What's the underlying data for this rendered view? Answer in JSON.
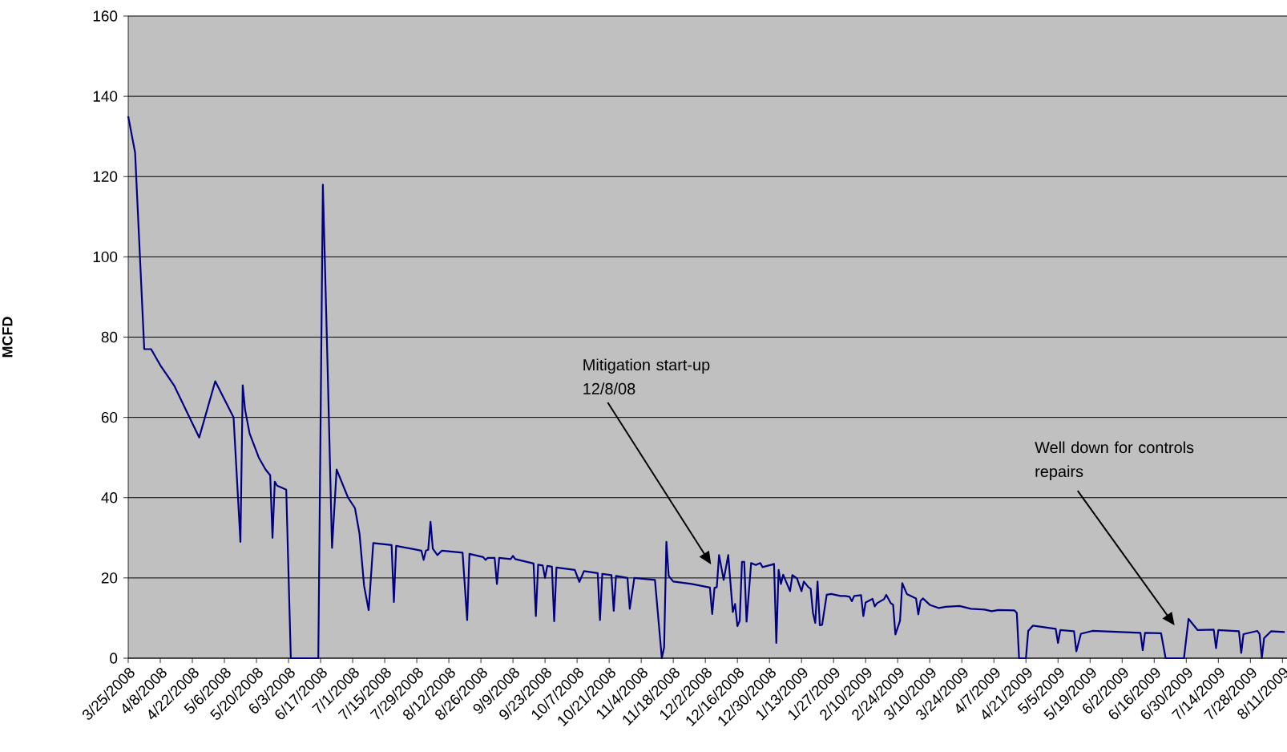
{
  "chart_data": {
    "type": "line",
    "ylabel": "MCFD",
    "color": "#000080",
    "grid": "y",
    "xlim": [
      "2008-03-25",
      "2009-08-13"
    ],
    "ylim": [
      0,
      160
    ],
    "yticks": [
      0,
      20,
      40,
      60,
      80,
      100,
      120,
      140,
      160
    ],
    "xticks": [
      {
        "value": "2008-03-25",
        "label": "3/25/2008"
      },
      {
        "value": "2008-04-08",
        "label": "4/8/2008"
      },
      {
        "value": "2008-04-22",
        "label": "4/22/2008"
      },
      {
        "value": "2008-05-06",
        "label": "5/6/2008"
      },
      {
        "value": "2008-05-20",
        "label": "5/20/2008"
      },
      {
        "value": "2008-06-03",
        "label": "6/3/2008"
      },
      {
        "value": "2008-06-17",
        "label": "6/17/2008"
      },
      {
        "value": "2008-07-01",
        "label": "7/1/2008"
      },
      {
        "value": "2008-07-15",
        "label": "7/15/2008"
      },
      {
        "value": "2008-07-29",
        "label": "7/29/2008"
      },
      {
        "value": "2008-08-12",
        "label": "8/12/2008"
      },
      {
        "value": "2008-08-26",
        "label": "8/26/2008"
      },
      {
        "value": "2008-09-09",
        "label": "9/9/2008"
      },
      {
        "value": "2008-09-23",
        "label": "9/23/2008"
      },
      {
        "value": "2008-10-07",
        "label": "10/7/2008"
      },
      {
        "value": "2008-10-21",
        "label": "10/21/2008"
      },
      {
        "value": "2008-11-04",
        "label": "11/4/2008"
      },
      {
        "value": "2008-11-18",
        "label": "11/18/2008"
      },
      {
        "value": "2008-12-02",
        "label": "12/2/2008"
      },
      {
        "value": "2008-12-16",
        "label": "12/16/2008"
      },
      {
        "value": "2008-12-30",
        "label": "12/30/2008"
      },
      {
        "value": "2009-01-13",
        "label": "1/13/2009"
      },
      {
        "value": "2009-01-27",
        "label": "1/27/2009"
      },
      {
        "value": "2009-02-10",
        "label": "2/10/2009"
      },
      {
        "value": "2009-02-24",
        "label": "2/24/2009"
      },
      {
        "value": "2009-03-10",
        "label": "3/10/2009"
      },
      {
        "value": "2009-03-24",
        "label": "3/24/2009"
      },
      {
        "value": "2009-04-07",
        "label": "4/7/2009"
      },
      {
        "value": "2009-04-21",
        "label": "4/21/2009"
      },
      {
        "value": "2009-05-05",
        "label": "5/5/2009"
      },
      {
        "value": "2009-05-19",
        "label": "5/19/2009"
      },
      {
        "value": "2009-06-02",
        "label": "6/2/2009"
      },
      {
        "value": "2009-06-16",
        "label": "6/16/2009"
      },
      {
        "value": "2009-06-30",
        "label": "6/30/2009"
      },
      {
        "value": "2009-07-14",
        "label": "7/14/2009"
      },
      {
        "value": "2009-07-28",
        "label": "7/28/2009"
      },
      {
        "value": "2009-08-11",
        "label": "8/11/2009"
      }
    ],
    "annotations": [
      "Mitigation start-up 12/8/08",
      "Well down for controls repairs"
    ],
    "x": [
      "2008-03-25",
      "2008-03-28",
      "2008-04-01",
      "2008-04-04",
      "2008-04-08",
      "2008-04-14",
      "2008-04-25",
      "2008-05-02",
      "2008-05-10",
      "2008-05-13",
      "2008-05-14",
      "2008-05-15",
      "2008-05-17",
      "2008-05-21",
      "2008-05-24",
      "2008-05-26",
      "2008-05-27",
      "2008-05-28",
      "2008-05-29",
      "2008-06-02",
      "2008-06-04",
      "2008-06-16",
      "2008-06-18",
      "2008-06-20",
      "2008-06-22",
      "2008-06-24",
      "2008-06-29",
      "2008-07-02",
      "2008-07-04",
      "2008-07-06",
      "2008-07-08",
      "2008-07-10",
      "2008-07-18",
      "2008-07-19",
      "2008-07-20",
      "2008-07-31",
      "2008-08-01",
      "2008-08-02",
      "2008-08-03",
      "2008-08-04",
      "2008-08-05",
      "2008-08-07",
      "2008-08-09",
      "2008-08-18",
      "2008-08-20",
      "2008-08-21",
      "2008-08-27",
      "2008-08-28",
      "2008-08-29",
      "2008-09-01",
      "2008-09-02",
      "2008-09-03",
      "2008-09-08",
      "2008-09-09",
      "2008-09-10",
      "2008-09-18",
      "2008-09-19",
      "2008-09-20",
      "2008-09-22",
      "2008-09-23",
      "2008-09-24",
      "2008-09-26",
      "2008-09-27",
      "2008-09-28",
      "2008-10-06",
      "2008-10-08",
      "2008-10-10",
      "2008-10-16",
      "2008-10-17",
      "2008-10-18",
      "2008-10-22",
      "2008-10-23",
      "2008-10-24",
      "2008-10-29",
      "2008-10-30",
      "2008-11-01",
      "2008-11-10",
      "2008-11-13",
      "2008-11-14",
      "2008-11-15",
      "2008-11-16",
      "2008-11-18",
      "2008-11-26",
      "2008-12-04",
      "2008-12-05",
      "2008-12-06",
      "2008-12-07",
      "2008-12-08",
      "2008-12-10",
      "2008-12-12",
      "2008-12-14",
      "2008-12-15",
      "2008-12-16",
      "2008-12-17",
      "2008-12-18",
      "2008-12-19",
      "2008-12-20",
      "2008-12-22",
      "2008-12-24",
      "2008-12-26",
      "2008-12-27",
      "2008-12-31",
      "2009-01-01",
      "2009-01-02",
      "2009-01-03",
      "2009-01-04",
      "2009-01-05",
      "2009-01-08",
      "2009-01-09",
      "2009-01-11",
      "2009-01-13",
      "2009-01-14",
      "2009-01-16",
      "2009-01-17",
      "2009-01-18",
      "2009-01-19",
      "2009-01-20",
      "2009-01-21",
      "2009-01-22",
      "2009-01-24",
      "2009-01-26",
      "2009-01-30",
      "2009-02-01",
      "2009-02-03",
      "2009-02-04",
      "2009-02-05",
      "2009-02-08",
      "2009-02-09",
      "2009-02-10",
      "2009-02-13",
      "2009-02-14",
      "2009-02-15",
      "2009-02-18",
      "2009-02-19",
      "2009-02-21",
      "2009-02-22",
      "2009-02-23",
      "2009-02-25",
      "2009-02-26",
      "2009-02-28",
      "2009-03-04",
      "2009-03-05",
      "2009-03-06",
      "2009-03-07",
      "2009-03-10",
      "2009-03-14",
      "2009-03-17",
      "2009-03-23",
      "2009-03-28",
      "2009-04-03",
      "2009-04-06",
      "2009-04-09",
      "2009-04-16",
      "2009-04-17",
      "2009-04-18",
      "2009-04-21",
      "2009-04-22",
      "2009-04-24",
      "2009-05-04",
      "2009-05-05",
      "2009-05-06",
      "2009-05-12",
      "2009-05-13",
      "2009-05-15",
      "2009-05-20",
      "2009-06-10",
      "2009-06-11",
      "2009-06-12",
      "2009-06-19",
      "2009-06-21",
      "2009-06-29",
      "2009-07-01",
      "2009-07-05",
      "2009-07-12",
      "2009-07-13",
      "2009-07-14",
      "2009-07-23",
      "2009-07-24",
      "2009-07-25",
      "2009-07-31",
      "2009-08-01",
      "2009-08-02",
      "2009-08-03",
      "2009-08-06",
      "2009-08-12"
    ],
    "values": [
      135,
      126,
      77,
      77,
      73,
      68,
      55,
      69,
      60,
      29,
      68,
      62,
      56,
      50,
      47,
      45.6,
      30,
      44,
      43,
      42,
      0,
      0,
      118,
      74,
      27.5,
      47,
      40,
      37.4,
      31,
      18,
      12,
      28.7,
      28.2,
      14,
      28,
      26.8,
      24.5,
      26.8,
      27,
      34,
      27.3,
      25.7,
      26.8,
      26.3,
      9.5,
      26,
      25.2,
      24.5,
      25,
      25,
      18.5,
      25,
      24.7,
      25.5,
      24.7,
      23.6,
      10.5,
      23.3,
      23.1,
      20,
      23,
      22.8,
      9.2,
      22.6,
      22,
      19,
      21.7,
      21.2,
      9.5,
      21,
      20.7,
      11.8,
      20.5,
      20,
      12.3,
      20,
      19.5,
      0,
      2.7,
      29,
      20.5,
      19.1,
      18.5,
      17.6,
      11,
      17.5,
      17.7,
      25.7,
      19.5,
      25.7,
      11.5,
      13.5,
      8,
      9.3,
      24,
      24,
      9.1,
      23.7,
      23.2,
      23.7,
      22.7,
      23.3,
      23.5,
      3.8,
      22,
      18.5,
      20.8,
      16.7,
      20.7,
      19.9,
      16.7,
      19.1,
      17.7,
      17.3,
      11.3,
      8.8,
      19.1,
      8.2,
      8.3,
      15.8,
      16,
      15.5,
      15.5,
      15.3,
      14.2,
      15.5,
      15.7,
      10.5,
      13.9,
      14.8,
      12.9,
      13.7,
      14.7,
      15.8,
      13.7,
      13.3,
      5.9,
      9.3,
      18.7,
      16,
      14.9,
      10.9,
      14.3,
      14.9,
      13.3,
      12.5,
      12.8,
      13,
      12.3,
      12.1,
      11.7,
      12,
      11.9,
      11.3,
      0,
      0,
      6.8,
      8.1,
      7.3,
      3.8,
      7,
      6.7,
      1.7,
      6.1,
      6.8,
      6.3,
      2,
      6.3,
      6.2,
      0,
      0,
      9.8,
      7,
      7.1,
      2.5,
      7,
      6.7,
      1.3,
      6,
      6.8,
      6,
      0,
      5,
      6.7,
      6.5
    ]
  }
}
